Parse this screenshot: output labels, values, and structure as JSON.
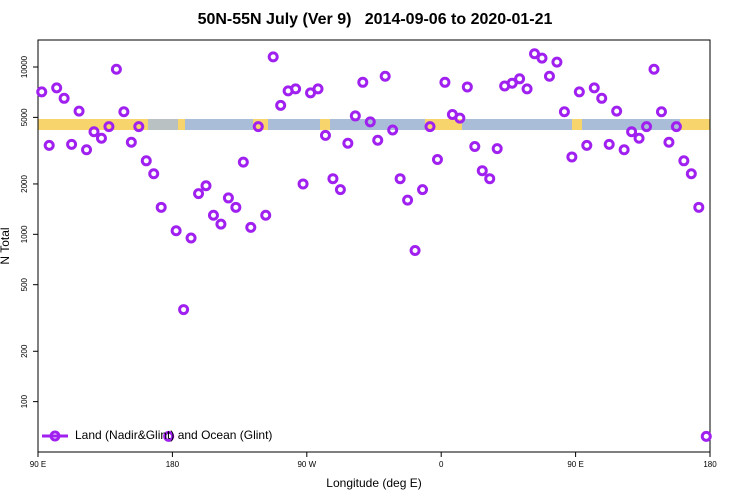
{
  "chart_data": {
    "type": "scatter",
    "title": "50N-55N July (Ver 9)   2014-09-06 to 2020-01-21",
    "xlabel": "Longitude (deg E)",
    "ylabel": "N Total",
    "log_y": true,
    "legend": "bottom-left",
    "xlim": [
      90,
      540
    ],
    "ylim": [
      50,
      14500
    ],
    "xticks": [
      {
        "value": 90,
        "label": "90 E"
      },
      180,
      {
        "value": 270,
        "label": "90 W"
      },
      {
        "value": 360,
        "label": "0"
      },
      {
        "value": 450,
        "label": "90 E"
      },
      {
        "value": 540,
        "label": "180"
      }
    ],
    "yticks": [
      100,
      200,
      500,
      1000,
      2000,
      5000,
      10000
    ],
    "series": [
      {
        "name": "Land (Nadir&Glint) and Ocean (Glint)",
        "color": "#a020f0",
        "x": [
          92.5,
          97.5,
          102.5,
          107.5,
          112.5,
          117.5,
          122.5,
          127.5,
          132.5,
          137.5,
          142.5,
          147.5,
          152.5,
          157.5,
          162.5,
          167.5,
          172.5,
          177.5,
          182.5,
          187.5,
          192.5,
          197.5,
          202.5,
          207.5,
          212.5,
          217.5,
          222.5,
          227.5,
          232.5,
          237.5,
          242.5,
          247.5,
          252.5,
          257.5,
          262.5,
          267.5,
          272.5,
          277.5,
          282.5,
          287.5,
          292.5,
          297.5,
          302.5,
          307.5,
          312.5,
          317.5,
          322.5,
          327.5,
          332.5,
          337.5,
          342.5,
          347.5,
          352.5,
          357.5,
          362.5,
          367.5,
          372.5,
          377.5,
          382.5,
          387.5,
          392.5,
          397.5,
          402.5,
          407.5,
          412.5,
          417.5,
          422.5,
          427.5,
          432.5,
          437.5,
          442.5,
          447.5,
          452.5,
          457.5,
          462.5,
          467.5,
          472.5,
          477.5,
          482.5,
          487.5,
          492.5,
          497.5,
          502.5,
          507.5,
          512.5,
          517.5,
          522.5,
          527.5,
          532.5,
          537.5
        ],
        "values": [
          7100,
          3400,
          7500,
          6500,
          3450,
          5450,
          3200,
          4100,
          3750,
          4400,
          9700,
          5400,
          3550,
          4400,
          2750,
          2300,
          1450,
          62,
          1050,
          355,
          950,
          1750,
          1950,
          1300,
          1150,
          1650,
          1450,
          2700,
          1100,
          4400,
          1300,
          11500,
          5900,
          7200,
          7400,
          2000,
          7000,
          7400,
          3900,
          2150,
          1850,
          3500,
          5100,
          8100,
          4700,
          3650,
          8800,
          4200,
          2150,
          1600,
          800,
          1850,
          4400,
          2800,
          8100,
          5200,
          4950,
          7600,
          3350,
          2400,
          2150,
          3250,
          7700,
          8000,
          8500,
          7400,
          12000,
          11300,
          8800,
          10700,
          5400,
          2900,
          7100,
          3400,
          7500,
          6500,
          3450,
          5450,
          3200,
          4100,
          3750,
          4400,
          9700,
          5400,
          3550,
          4400,
          2750,
          2300,
          1450,
          62
        ]
      }
    ]
  }
}
